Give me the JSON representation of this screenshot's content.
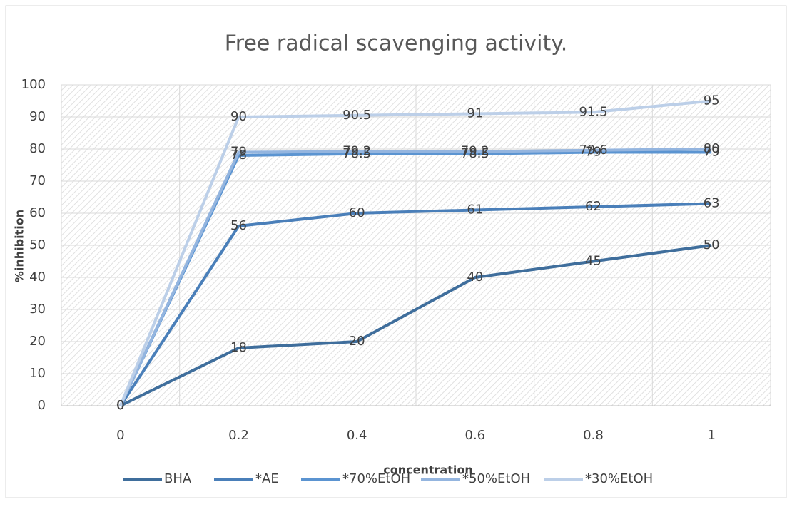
{
  "chart_data": {
    "type": "line",
    "title": "Free radical scavenging activity.",
    "x_label": "concentration",
    "y_label": "%inhibition",
    "categories": [
      "0",
      "0.2",
      "0.4",
      "0.6",
      "0.8",
      "1"
    ],
    "series": [
      {
        "name": "BHA",
        "color": "#3f6e9c",
        "values": [
          0,
          18,
          20,
          40,
          45,
          50
        ]
      },
      {
        "name": "*AE",
        "color": "#4a7fb9",
        "values": [
          0,
          56,
          60,
          61,
          62,
          63
        ]
      },
      {
        "name": "*70%EtOH",
        "color": "#5b94d1",
        "values": [
          0,
          78,
          78.5,
          78.5,
          79,
          79
        ]
      },
      {
        "name": "*50%EtOH",
        "color": "#94b5df",
        "values": [
          0,
          79,
          79.2,
          79.2,
          79.6,
          80
        ]
      },
      {
        "name": "*30%EtOH",
        "color": "#bccfe8",
        "values": [
          0,
          90,
          90.5,
          91,
          91.5,
          95
        ]
      }
    ],
    "ylim": [
      0,
      100
    ],
    "yticks": [
      0,
      10,
      20,
      30,
      40,
      50,
      60,
      70,
      80,
      90,
      100
    ],
    "grid": true,
    "legend": "bottom"
  }
}
